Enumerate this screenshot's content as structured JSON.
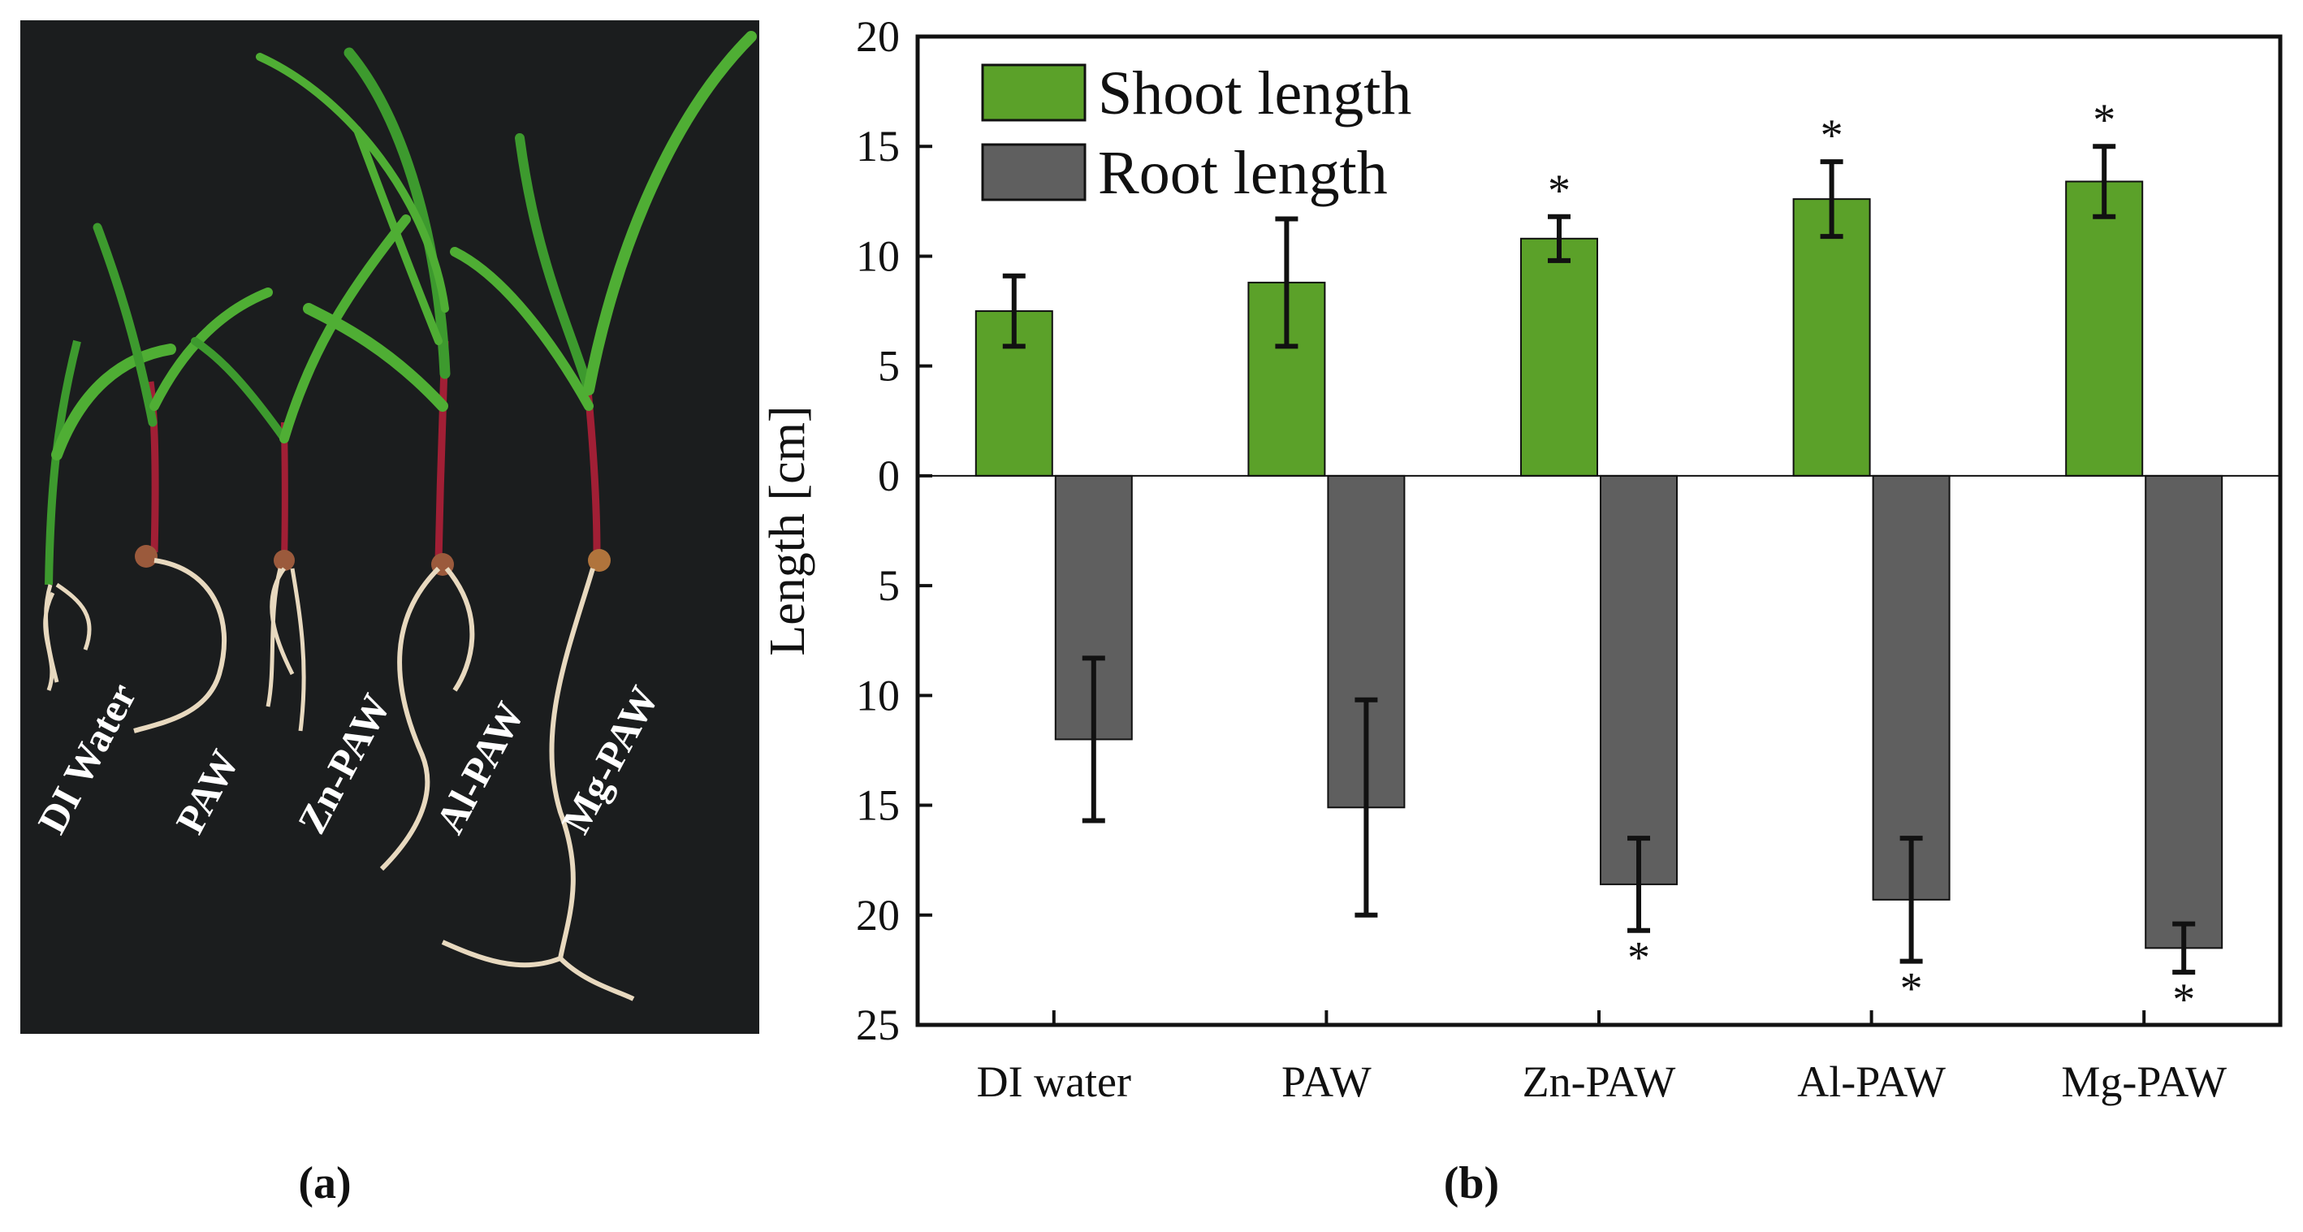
{
  "figure": {
    "panel_a_label": "(a)",
    "panel_b_label": "(b)",
    "photo_labels": [
      "DI Water",
      "PAW",
      "Zn-PAW",
      "Al-PAW",
      "Mg-PAW"
    ],
    "photo_description_icon": "maize-seedlings-photo-icon"
  },
  "colors": {
    "shoot": "#5ba129",
    "root": "#5f5f5f",
    "background_photo": "#1f2123",
    "leaf": "#3d9a2e",
    "root_fiber": "#e8d9bf",
    "stem": "#a11f35"
  },
  "chart_data": {
    "type": "bar",
    "categories": [
      "DI water",
      "PAW",
      "Zn-PAW",
      "Al-PAW",
      "Mg-PAW"
    ],
    "series": [
      {
        "name": "Shoot length",
        "values": [
          7.5,
          8.8,
          10.8,
          12.6,
          13.4
        ],
        "errors": [
          1.6,
          2.9,
          1.0,
          1.7,
          1.6
        ],
        "significant": [
          false,
          false,
          true,
          true,
          true
        ],
        "direction": "up"
      },
      {
        "name": "Root length",
        "values": [
          12.0,
          15.1,
          18.6,
          19.3,
          21.5
        ],
        "errors": [
          3.7,
          4.9,
          2.1,
          2.8,
          1.1
        ],
        "significant": [
          false,
          false,
          true,
          true,
          true
        ],
        "direction": "down"
      }
    ],
    "ylabel": "Length [cm]",
    "xlabel": "",
    "y_up_range": [
      0,
      20
    ],
    "y_down_range": [
      0,
      25
    ],
    "yticks_up": [
      "20",
      "15",
      "10",
      "5",
      "0"
    ],
    "yticks_down": [
      "5",
      "10",
      "15",
      "20",
      "25"
    ],
    "significance_marker": "*",
    "legend_position": "top-left",
    "grid": false
  }
}
